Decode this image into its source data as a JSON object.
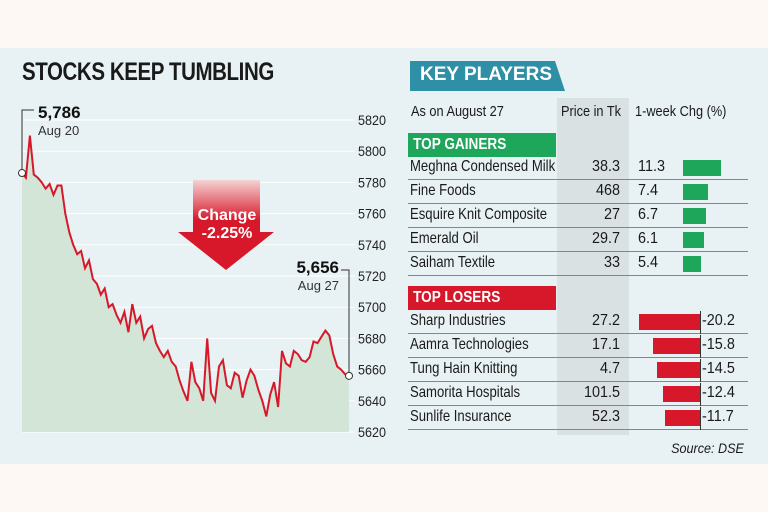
{
  "title": "STOCKS KEEP TUMBLING",
  "chart_data": {
    "type": "line",
    "yticks": [
      5820,
      5800,
      5780,
      5760,
      5740,
      5720,
      5700,
      5680,
      5660,
      5640,
      5620
    ],
    "ylim": [
      5620,
      5820
    ],
    "values": [
      5786,
      5783,
      5810,
      5785,
      5783,
      5780,
      5776,
      5779,
      5772,
      5778,
      5778,
      5760,
      5748,
      5740,
      5734,
      5736,
      5725,
      5730,
      5718,
      5715,
      5708,
      5712,
      5700,
      5702,
      5695,
      5690,
      5697,
      5684,
      5702,
      5690,
      5694,
      5680,
      5686,
      5688,
      5677,
      5672,
      5668,
      5672,
      5665,
      5662,
      5653,
      5646,
      5640,
      5665,
      5652,
      5648,
      5640,
      5680,
      5645,
      5640,
      5662,
      5666,
      5650,
      5648,
      5658,
      5656,
      5642,
      5653,
      5660,
      5656,
      5647,
      5640,
      5630,
      5644,
      5652,
      5636,
      5672,
      5664,
      5662,
      5672,
      5670,
      5666,
      5665,
      5668,
      5678,
      5677,
      5681,
      5685,
      5682,
      5670,
      5662,
      5660,
      5657,
      5656
    ],
    "start": {
      "value": "5,786",
      "date": "Aug 20"
    },
    "end": {
      "value": "5,656",
      "date": "Aug 27"
    },
    "change": {
      "label": "Change",
      "value": "-2.25%"
    },
    "colors": {
      "line": "#d7182a",
      "fill": "#d3e5d6",
      "arrow": "#d7182a"
    }
  },
  "players": {
    "banner": "KEY PLAYERS",
    "as_on": "As on August 27",
    "price_header": "Price in Tk",
    "change_header": "1-week Chg (%)",
    "gainers_label": "TOP GAINERS",
    "losers_label": "TOP LOSERS",
    "gainers": [
      {
        "name": "Meghna Condensed Milk",
        "price": "38.3",
        "change": 11.3
      },
      {
        "name": "Fine Foods",
        "price": "468",
        "change": 7.4
      },
      {
        "name": "Esquire Knit Composite",
        "price": "27",
        "change": 6.7
      },
      {
        "name": "Emerald Oil",
        "price": "29.7",
        "change": 6.1
      },
      {
        "name": "Saiham Textile",
        "price": "33",
        "change": 5.4
      }
    ],
    "losers": [
      {
        "name": "Sharp Industries",
        "price": "27.2",
        "change": -20.2
      },
      {
        "name": "Aamra Technologies",
        "price": "17.1",
        "change": -15.8
      },
      {
        "name": "Tung Hain Knitting",
        "price": "4.7",
        "change": -14.5
      },
      {
        "name": "Samorita Hospitals",
        "price": "101.5",
        "change": -12.4
      },
      {
        "name": "Sunlife Insurance",
        "price": "52.3",
        "change": -11.7
      }
    ],
    "colors": {
      "gain": "#1ea65a",
      "loss": "#d7182a",
      "banner": "#2f8fa6"
    }
  },
  "source": "Source: DSE"
}
